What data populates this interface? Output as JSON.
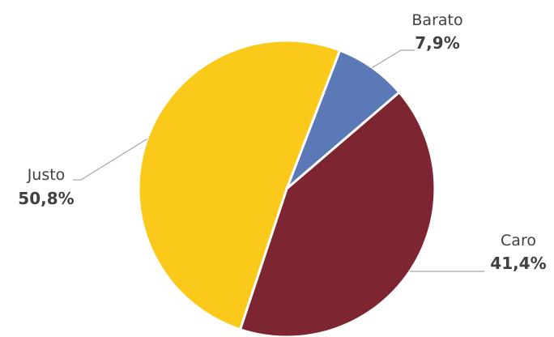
{
  "chart_data": {
    "type": "pie",
    "title": "",
    "slices": [
      {
        "label": "Barato",
        "value": 7.9,
        "display": "7,9%",
        "color": "#5b79b7"
      },
      {
        "label": "Caro",
        "value": 41.4,
        "display": "41,4%",
        "color": "#7d2530"
      },
      {
        "label": "Justo",
        "value": 50.8,
        "display": "50,8%",
        "color": "#fbc91a"
      }
    ],
    "slice_border_color": "#ffffff",
    "legend": "none",
    "data_labels": "outside-with-leader-lines"
  }
}
